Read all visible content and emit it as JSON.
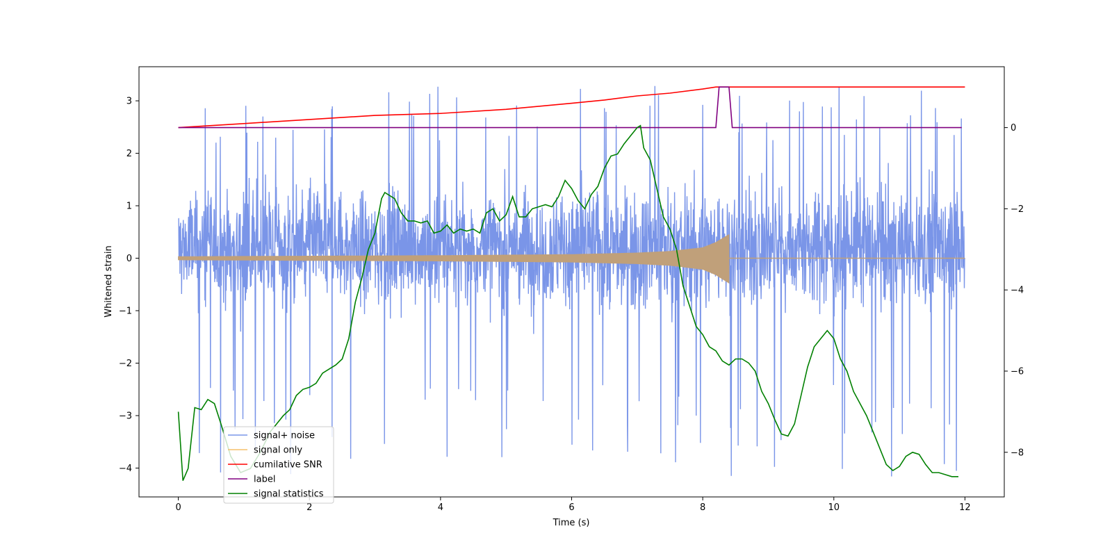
{
  "chart_data": {
    "type": "line",
    "title": "",
    "xlabel": "Time (s)",
    "ylabel": "Whitened strain",
    "y2label": "",
    "xlim": [
      -0.6,
      12.6
    ],
    "ylim": [
      -4.55,
      3.65
    ],
    "y2lim": [
      -9.1,
      1.5
    ],
    "xticks": [
      0,
      2,
      4,
      6,
      8,
      10,
      12
    ],
    "yticks": [
      -4,
      -3,
      -2,
      -1,
      0,
      1,
      2,
      3
    ],
    "y2ticks": [
      -8,
      -6,
      -4,
      -2,
      0
    ],
    "grid": false,
    "legend_position": "bottom-left",
    "series": [
      {
        "name": "signal+ noise",
        "axis": "left",
        "color": "#7a95e8",
        "kind": "noise",
        "x_range": [
          0,
          12
        ],
        "typical_range": [
          -1.8,
          2.2
        ],
        "peak_range": [
          -4.2,
          3.3
        ]
      },
      {
        "name": "signal only",
        "axis": "left",
        "color": "#f5c06b",
        "kind": "chirp",
        "x_range": [
          0,
          12
        ],
        "merger_time": 8.4,
        "envelope": {
          "x": [
            0,
            2,
            4,
            6,
            7,
            7.5,
            8,
            8.2,
            8.4
          ],
          "amp": [
            0.03,
            0.04,
            0.05,
            0.07,
            0.1,
            0.13,
            0.2,
            0.3,
            0.45
          ]
        }
      },
      {
        "name": "cumilative SNR",
        "axis": "right",
        "color": "#ff0000",
        "x": [
          0,
          1,
          2,
          3,
          4,
          5,
          6,
          6.5,
          7,
          7.5,
          8,
          8.2,
          8.4,
          12
        ],
        "y": [
          0,
          0.1,
          0.2,
          0.3,
          0.35,
          0.45,
          0.6,
          0.68,
          0.78,
          0.85,
          0.95,
          1.0,
          1.0,
          1.0
        ]
      },
      {
        "name": "label",
        "axis": "right",
        "color": "#800080",
        "x": [
          0,
          8.2,
          8.25,
          8.4,
          8.45,
          11.95
        ],
        "y": [
          0,
          0,
          1,
          1,
          0,
          0
        ]
      },
      {
        "name": "signal statistics",
        "axis": "right",
        "color": "#008000",
        "x": [
          0,
          0.07,
          0.15,
          0.25,
          0.35,
          0.45,
          0.55,
          0.65,
          0.8,
          0.95,
          1.1,
          1.25,
          1.4,
          1.5,
          1.6,
          1.7,
          1.8,
          1.9,
          2.0,
          2.1,
          2.2,
          2.3,
          2.4,
          2.5,
          2.6,
          2.7,
          2.8,
          2.9,
          3.0,
          3.1,
          3.15,
          3.2,
          3.3,
          3.4,
          3.5,
          3.6,
          3.7,
          3.8,
          3.9,
          4.0,
          4.1,
          4.2,
          4.3,
          4.4,
          4.5,
          4.6,
          4.7,
          4.8,
          4.9,
          5.0,
          5.1,
          5.2,
          5.3,
          5.4,
          5.5,
          5.6,
          5.7,
          5.8,
          5.9,
          6.0,
          6.1,
          6.2,
          6.3,
          6.4,
          6.5,
          6.6,
          6.7,
          6.8,
          6.9,
          7.0,
          7.05,
          7.1,
          7.2,
          7.3,
          7.4,
          7.5,
          7.6,
          7.7,
          7.8,
          7.9,
          8.0,
          8.1,
          8.2,
          8.3,
          8.4,
          8.5,
          8.6,
          8.7,
          8.8,
          8.9,
          9.0,
          9.1,
          9.2,
          9.3,
          9.4,
          9.5,
          9.6,
          9.7,
          9.8,
          9.9,
          10.0,
          10.1,
          10.2,
          10.3,
          10.4,
          10.5,
          10.6,
          10.7,
          10.8,
          10.9,
          11.0,
          11.1,
          11.2,
          11.3,
          11.4,
          11.5,
          11.6,
          11.7,
          11.8,
          11.9
        ],
        "y": [
          -7.0,
          -8.7,
          -8.4,
          -6.9,
          -6.95,
          -6.7,
          -6.8,
          -7.3,
          -8.1,
          -8.5,
          -8.4,
          -8.0,
          -7.5,
          -7.3,
          -7.1,
          -6.95,
          -6.6,
          -6.45,
          -6.4,
          -6.3,
          -6.05,
          -5.95,
          -5.85,
          -5.7,
          -5.2,
          -4.3,
          -3.7,
          -3.0,
          -2.6,
          -1.75,
          -1.6,
          -1.65,
          -1.75,
          -2.1,
          -2.3,
          -2.3,
          -2.35,
          -2.3,
          -2.6,
          -2.55,
          -2.4,
          -2.6,
          -2.5,
          -2.55,
          -2.5,
          -2.6,
          -2.1,
          -2.0,
          -2.3,
          -2.15,
          -1.7,
          -2.2,
          -2.2,
          -2.0,
          -1.95,
          -1.9,
          -1.95,
          -1.7,
          -1.3,
          -1.5,
          -1.8,
          -2.0,
          -1.65,
          -1.45,
          -1.0,
          -0.7,
          -0.65,
          -0.4,
          -0.2,
          0.0,
          0.05,
          -0.5,
          -0.8,
          -1.5,
          -2.2,
          -2.5,
          -3.0,
          -3.9,
          -4.4,
          -4.9,
          -5.1,
          -5.4,
          -5.5,
          -5.75,
          -5.85,
          -5.7,
          -5.7,
          -5.8,
          -6.0,
          -6.5,
          -6.8,
          -7.2,
          -7.55,
          -7.6,
          -7.3,
          -6.6,
          -5.9,
          -5.4,
          -5.2,
          -5.0,
          -5.2,
          -5.7,
          -6.0,
          -6.5,
          -6.8,
          -7.1,
          -7.5,
          -7.9,
          -8.3,
          -8.45,
          -8.35,
          -8.1,
          -8.0,
          -8.05,
          -8.3,
          -8.5,
          -8.5,
          -8.55,
          -8.6,
          -8.6
        ]
      }
    ]
  }
}
